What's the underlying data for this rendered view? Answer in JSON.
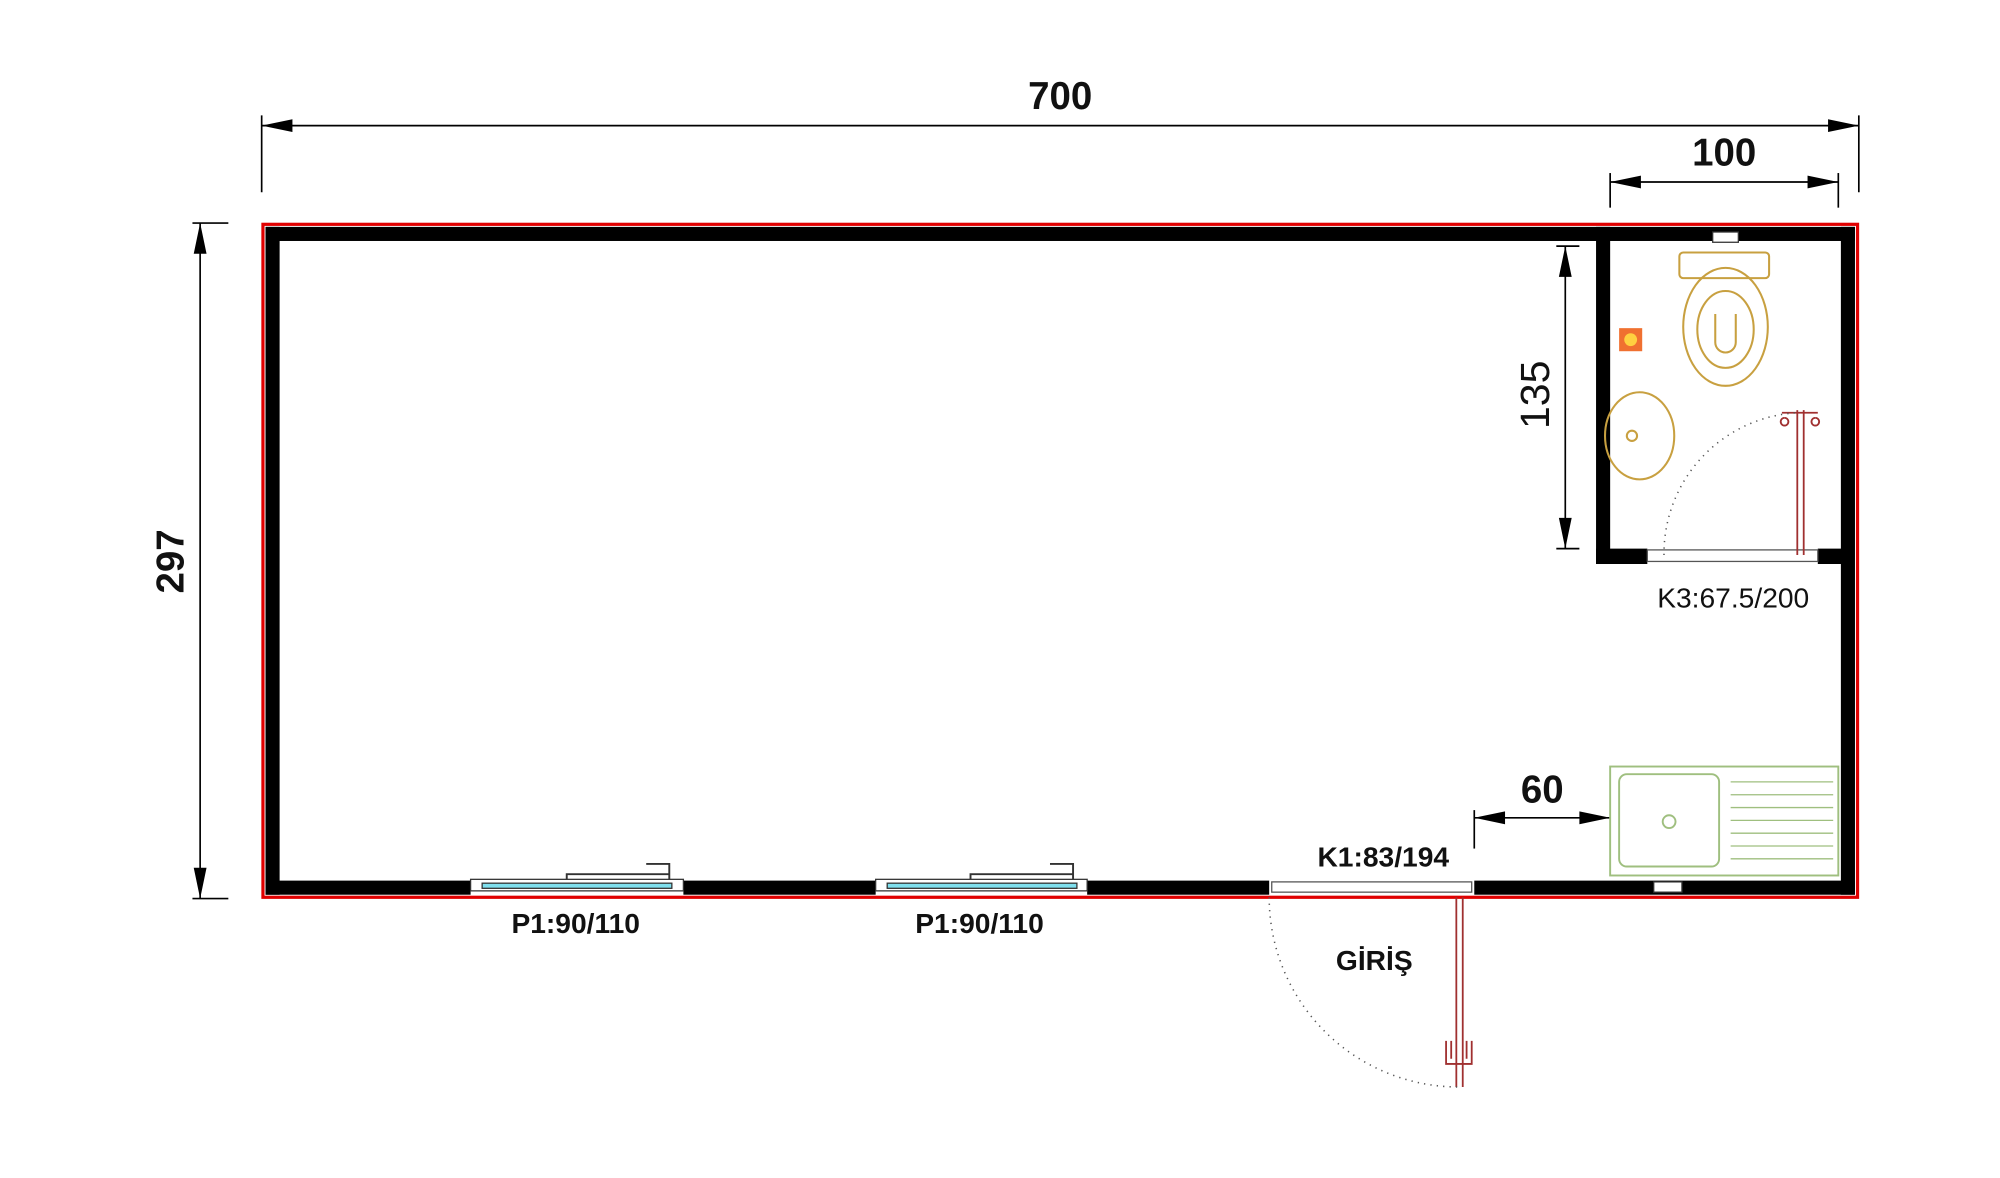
{
  "dimensions": {
    "total_width": "700",
    "bathroom_width": "100",
    "total_depth": "297",
    "bathroom_depth": "135",
    "kitchen_offset": "60"
  },
  "openings": {
    "bathroom_door": "K3:67.5/200",
    "entrance_door": "K1:83/194",
    "window_1": "P1:90/110",
    "window_2": "P1:90/110",
    "entrance": "GİRİŞ"
  }
}
